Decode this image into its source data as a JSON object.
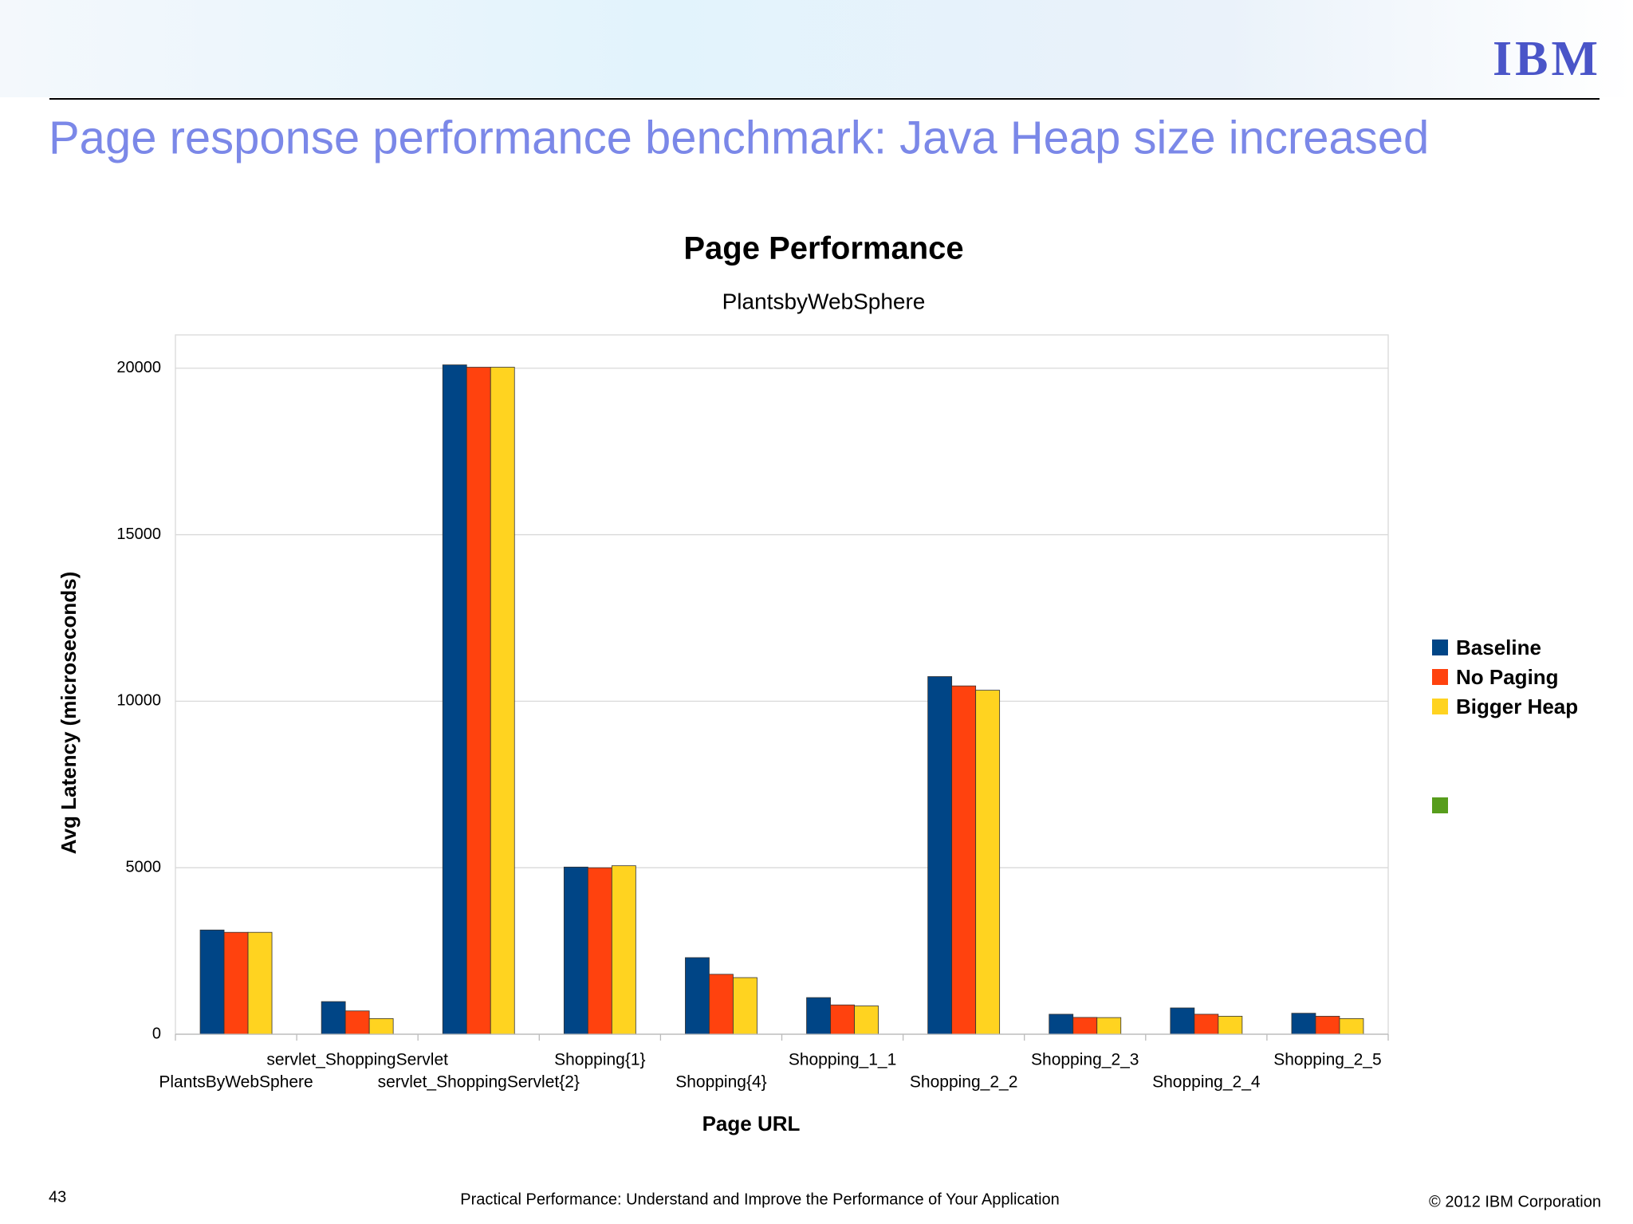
{
  "header": {
    "title": "Page response performance benchmark: Java Heap size increased",
    "logo": "IBM"
  },
  "footer": {
    "page": "43",
    "text": "Practical Performance: Understand and Improve the Performance of Your Application",
    "copyright": "© 2012 IBM Corporation"
  },
  "chart_data": {
    "type": "bar",
    "title": "Page Performance",
    "subtitle": "PlantsbyWebSphere",
    "x_label": "Page URL",
    "y_label": "Avg Latency (microseconds)",
    "categories": [
      "PlantsByWebSphere",
      "servlet_ShoppingServlet",
      "servlet_ShoppingServlet{2}",
      "Shopping{1}",
      "Shopping{4}",
      "Shopping_1_1",
      "Shopping_2_2",
      "Shopping_2_3",
      "Shopping_2_4",
      "Shopping_2_5"
    ],
    "series": [
      {
        "name": "Baseline",
        "color": "#004586",
        "values": [
          3130,
          980,
          20100,
          5020,
          2300,
          1100,
          10740,
          600,
          790,
          630
        ]
      },
      {
        "name": "No Paging",
        "color": "#ff420e",
        "values": [
          3060,
          700,
          20030,
          5000,
          1800,
          880,
          10460,
          505,
          600,
          540
        ]
      },
      {
        "name": "Bigger Heap",
        "color": "#ffd320",
        "values": [
          3060,
          470,
          20030,
          5060,
          1700,
          850,
          10330,
          500,
          540,
          470
        ]
      }
    ],
    "ylim": [
      0,
      21000
    ],
    "yticks": [
      0,
      5000,
      10000,
      15000,
      20000
    ],
    "grid": true,
    "legend": "right"
  }
}
